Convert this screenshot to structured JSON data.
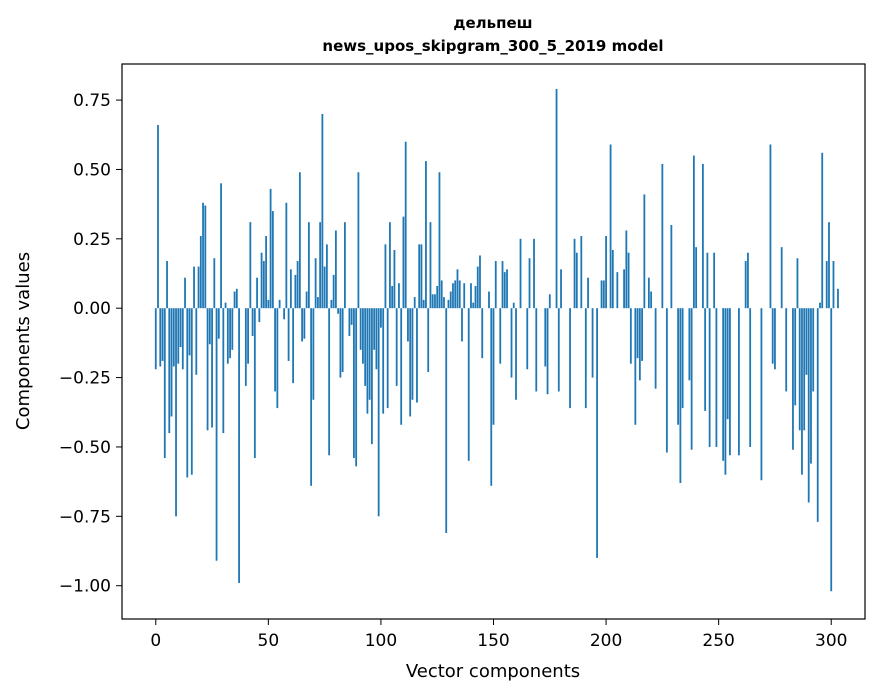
{
  "chart_data": {
    "type": "bar",
    "title_line1": "дельпеш",
    "title_line2": "news_upos_skipgram_300_5_2019 model",
    "xlabel": "Vector components",
    "ylabel": "Components values",
    "xlim": [
      -15,
      315
    ],
    "ylim": [
      -1.12,
      0.88
    ],
    "x_ticks": [
      0,
      50,
      100,
      150,
      200,
      250,
      300
    ],
    "y_ticks": [
      0.75,
      0.5,
      0.25,
      0.0,
      -0.25,
      -0.5,
      -0.75,
      -1.0
    ],
    "y_tick_labels": [
      "0.75",
      "0.50",
      "0.25",
      "0.00",
      "−0.25",
      "−0.50",
      "−0.75",
      "−1.00"
    ],
    "bar_color": "#1f77b4",
    "grid": false,
    "values": [
      -0.22,
      0.66,
      -0.21,
      -0.19,
      -0.54,
      0.17,
      -0.45,
      -0.39,
      -0.21,
      -0.75,
      -0.2,
      -0.14,
      -0.22,
      0.11,
      -0.61,
      -0.17,
      -0.6,
      0.15,
      -0.24,
      0.15,
      0.26,
      0.38,
      0.37,
      -0.44,
      -0.13,
      -0.43,
      0.18,
      -0.91,
      -0.11,
      0.45,
      -0.45,
      0.02,
      -0.2,
      -0.18,
      -0.15,
      0.06,
      0.07,
      -0.99,
      0.0,
      0.0,
      -0.28,
      -0.2,
      0.31,
      -0.1,
      -0.54,
      0.11,
      -0.05,
      0.2,
      0.17,
      0.26,
      0.03,
      0.43,
      0.35,
      -0.3,
      -0.36,
      0.03,
      0.0,
      -0.04,
      0.38,
      -0.19,
      0.14,
      -0.27,
      0.12,
      0.17,
      0.49,
      -0.12,
      -0.11,
      0.06,
      0.31,
      -0.64,
      -0.33,
      0.18,
      0.04,
      0.31,
      0.7,
      0.15,
      0.23,
      -0.53,
      0.03,
      0.12,
      0.28,
      -0.02,
      -0.25,
      -0.23,
      0.31,
      0.0,
      -0.1,
      -0.06,
      -0.54,
      -0.57,
      0.49,
      -0.15,
      -0.2,
      -0.28,
      -0.38,
      -0.33,
      -0.49,
      -0.15,
      -0.22,
      -0.75,
      -0.07,
      -0.38,
      0.23,
      -0.36,
      0.31,
      0.08,
      0.21,
      -0.28,
      0.09,
      -0.42,
      0.33,
      0.6,
      -0.12,
      -0.39,
      -0.33,
      0.04,
      -0.34,
      0.23,
      0.23,
      0.03,
      0.53,
      -0.23,
      0.31,
      0.05,
      0.05,
      0.08,
      0.49,
      0.1,
      0.04,
      -0.81,
      0.03,
      0.06,
      0.09,
      0.1,
      0.14,
      0.1,
      -0.12,
      0.09,
      0.0,
      -0.55,
      0.09,
      0.02,
      0.08,
      0.15,
      0.19,
      -0.18,
      0.0,
      0.0,
      0.06,
      -0.64,
      -0.42,
      0.17,
      0.0,
      -0.2,
      0.17,
      0.13,
      0.14,
      0.0,
      -0.25,
      0.02,
      -0.33,
      0.0,
      0.25,
      0.0,
      0.0,
      -0.22,
      0.18,
      0.0,
      0.25,
      -0.3,
      0.0,
      0.0,
      0.0,
      -0.21,
      -0.31,
      0.05,
      0.0,
      0.0,
      0.79,
      -0.3,
      0.14,
      0.0,
      0.0,
      0.0,
      -0.36,
      0.0,
      0.25,
      0.2,
      0.0,
      0.26,
      0.0,
      -0.36,
      0.11,
      0.0,
      -0.25,
      0.0,
      -0.9,
      0.0,
      0.1,
      0.1,
      0.26,
      0.0,
      0.59,
      0.21,
      0.0,
      0.13,
      0.0,
      0.0,
      0.14,
      0.28,
      0.2,
      -0.2,
      0.0,
      -0.42,
      -0.18,
      -0.26,
      -0.19,
      0.41,
      0.0,
      0.11,
      0.06,
      0.0,
      -0.29,
      0.0,
      0.0,
      0.52,
      0.0,
      -0.52,
      0.0,
      0.3,
      0.0,
      0.0,
      -0.42,
      -0.63,
      -0.36,
      0.0,
      0.0,
      -0.26,
      -0.51,
      0.55,
      0.22,
      0.0,
      0.0,
      0.52,
      -0.37,
      0.2,
      -0.5,
      0.0,
      0.2,
      -0.5,
      0.0,
      0.0,
      -0.55,
      -0.6,
      -0.4,
      -0.53,
      0.0,
      0.0,
      0.0,
      -0.53,
      0.0,
      0.0,
      0.17,
      0.2,
      -0.5,
      0.0,
      0.0,
      0.0,
      0.0,
      -0.62,
      0.0,
      0.0,
      0.0,
      0.59,
      -0.2,
      -0.22,
      0.0,
      0.0,
      0.22,
      0.0,
      -0.3,
      0.0,
      0.0,
      -0.51,
      -0.35,
      0.18,
      -0.44,
      -0.6,
      -0.44,
      -0.24,
      -0.7,
      -0.56,
      -0.3,
      0.0,
      -0.77,
      0.02,
      0.56,
      0.0,
      0.17,
      0.31,
      -1.02,
      0.17,
      0.0,
      0.07
    ]
  }
}
